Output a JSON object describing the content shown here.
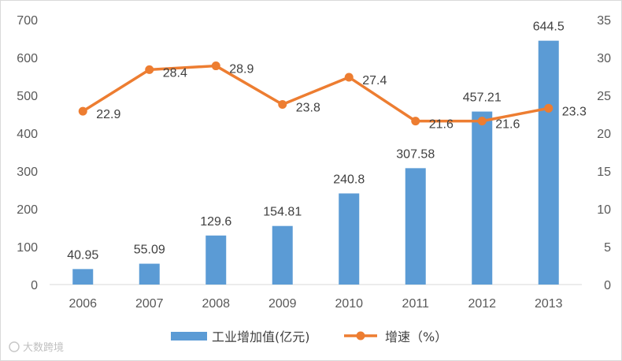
{
  "chart_data": {
    "type": "bar",
    "categories": [
      "2006",
      "2007",
      "2008",
      "2009",
      "2010",
      "2011",
      "2012",
      "2013"
    ],
    "series": [
      {
        "name": "工业增加值(亿元)",
        "type": "bar",
        "axis": "left",
        "color": "#5b9bd5",
        "values": [
          40.95,
          55.09,
          129.6,
          154.81,
          240.8,
          307.58,
          457.21,
          644.5
        ],
        "labels": [
          "40.95",
          "55.09",
          "129.6",
          "154.81",
          "240.8",
          "307.58",
          "457.21",
          "644.5"
        ]
      },
      {
        "name": "增速（%）",
        "type": "line",
        "axis": "right",
        "color": "#ed7d31",
        "values": [
          22.9,
          28.4,
          28.9,
          23.8,
          27.4,
          21.6,
          21.6,
          23.3
        ],
        "labels": [
          "22.9",
          "28.4",
          "28.9",
          "23.8",
          "27.4",
          "21.6",
          "21.6",
          "23.3"
        ]
      }
    ],
    "y_left": {
      "min": 0,
      "max": 700,
      "ticks": [
        "0",
        "100",
        "200",
        "300",
        "400",
        "500",
        "600",
        "700"
      ]
    },
    "y_right": {
      "min": 0,
      "max": 35,
      "ticks": [
        "0",
        "5",
        "10",
        "15",
        "20",
        "25",
        "30",
        "35"
      ]
    },
    "grid": false,
    "legend_position": "bottom"
  },
  "watermark": "大数跨境"
}
